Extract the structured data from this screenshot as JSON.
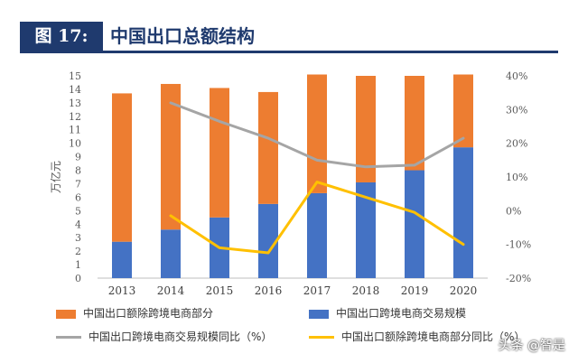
{
  "header": {
    "tag": "图 17:",
    "title": "中国出口总额结构"
  },
  "watermark": "头条 @智是",
  "colors": {
    "navy": "#1f3a6e",
    "orange": "#ed7d31",
    "blue": "#4472c4",
    "gray": "#a5a5a5",
    "yellow": "#ffc000"
  },
  "chart_data": {
    "type": "bar",
    "title": "",
    "ylabel": "万亿元",
    "ylim": [
      0,
      15
    ],
    "y2lim": [
      -20,
      40
    ],
    "grid": false,
    "legend_position": "bottom",
    "categories": [
      "2013",
      "2014",
      "2015",
      "2016",
      "2017",
      "2018",
      "2019",
      "2020"
    ],
    "y_ticks": [
      "0",
      "1",
      "2",
      "3",
      "4",
      "5",
      "6",
      "7",
      "8",
      "9",
      "10",
      "11",
      "12",
      "13",
      "14",
      "15"
    ],
    "y2_ticks": [
      "-20%",
      "-10%",
      "0%",
      "10%",
      "20%",
      "30%",
      "40%"
    ],
    "series": [
      {
        "name": "中国出口跨境电商交易规模",
        "kind": "bar",
        "axis": "left",
        "color": "#4472c4",
        "values": [
          2.7,
          3.6,
          4.5,
          5.5,
          6.3,
          7.1,
          8.0,
          9.7
        ]
      },
      {
        "name": "中国出口额除跨境电商部分",
        "kind": "bar",
        "axis": "left",
        "color": "#ed7d31",
        "values": [
          11.0,
          10.8,
          9.6,
          8.3,
          8.8,
          7.9,
          7.0,
          5.4
        ]
      },
      {
        "name": "中国出口跨境电商交易规模同比（%）",
        "kind": "line",
        "axis": "right",
        "color": "#a5a5a5",
        "values": [
          null,
          32.0,
          26.5,
          21.5,
          15.0,
          13.0,
          13.5,
          21.5
        ]
      },
      {
        "name": "中国出口额除跨境电商部分同比（%）",
        "kind": "line",
        "axis": "right",
        "color": "#ffc000",
        "values": [
          null,
          -1.5,
          -11.0,
          -12.5,
          8.5,
          4.0,
          -0.5,
          -10.0
        ]
      }
    ]
  },
  "legend": [
    {
      "label": "中国出口额除跨境电商部分",
      "color": "#ed7d31",
      "kind": "bar"
    },
    {
      "label": "中国出口跨境电商交易规模",
      "color": "#4472c4",
      "kind": "bar"
    },
    {
      "label": "中国出口跨境电商交易规模同比（%）",
      "color": "#a5a5a5",
      "kind": "line"
    },
    {
      "label": "中国出口额除跨境电商部分同比（%）",
      "color": "#ffc000",
      "kind": "line"
    }
  ]
}
